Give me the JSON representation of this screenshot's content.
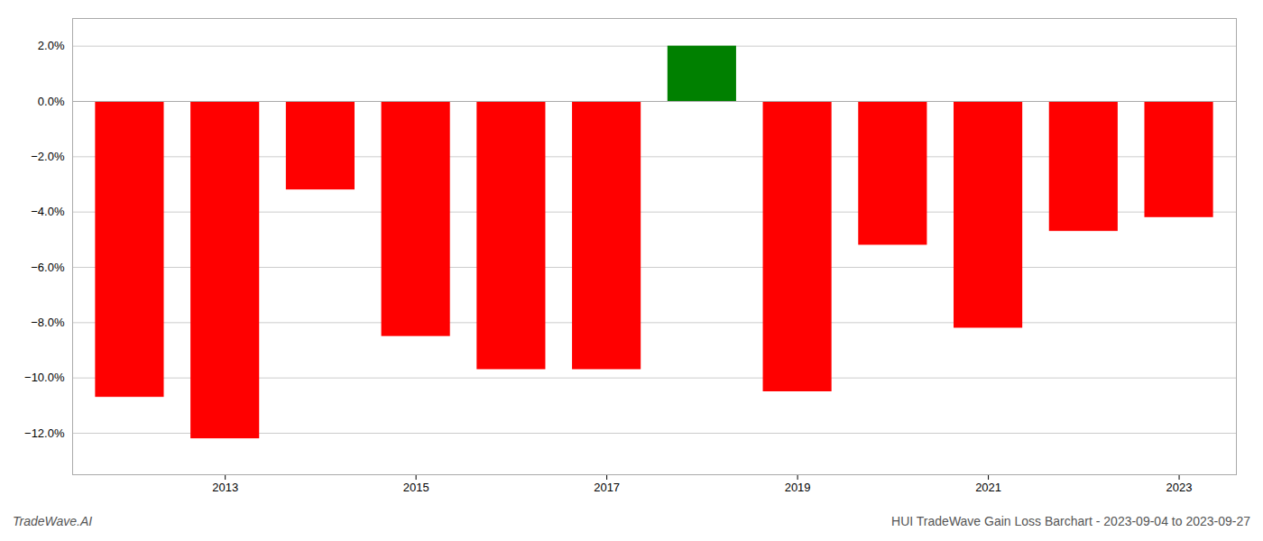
{
  "chart_data": {
    "type": "bar",
    "x": [
      2012,
      2013,
      2014,
      2015,
      2016,
      2017,
      2018,
      2019,
      2020,
      2021,
      2022,
      2023
    ],
    "values": [
      -0.107,
      -0.122,
      -0.032,
      -0.085,
      -0.097,
      -0.097,
      0.02,
      -0.105,
      -0.052,
      -0.082,
      -0.047,
      -0.042
    ],
    "colors": [
      "#ff0000",
      "#ff0000",
      "#ff0000",
      "#ff0000",
      "#ff0000",
      "#ff0000",
      "#008000",
      "#ff0000",
      "#ff0000",
      "#ff0000",
      "#ff0000",
      "#ff0000"
    ],
    "xlim": [
      2011.4,
      2023.6
    ],
    "xticks": [
      2013,
      2015,
      2017,
      2019,
      2021,
      2023
    ],
    "ylim": [
      -0.135,
      0.03
    ],
    "yticks": [
      {
        "value": -0.12,
        "label": "−12.0%"
      },
      {
        "value": -0.1,
        "label": "−10.0%"
      },
      {
        "value": -0.08,
        "label": "−8.0%"
      },
      {
        "value": -0.06,
        "label": "−6.0%"
      },
      {
        "value": -0.04,
        "label": "−4.0%"
      },
      {
        "value": -0.02,
        "label": "−2.0%"
      },
      {
        "value": 0.0,
        "label": "0.0%"
      },
      {
        "value": 0.02,
        "label": "2.0%"
      }
    ],
    "grid": true,
    "annotations": [
      "TradeWave.AI",
      "HUI TradeWave Gain Loss Barchart - 2023-09-04 to 2023-09-27"
    ]
  }
}
